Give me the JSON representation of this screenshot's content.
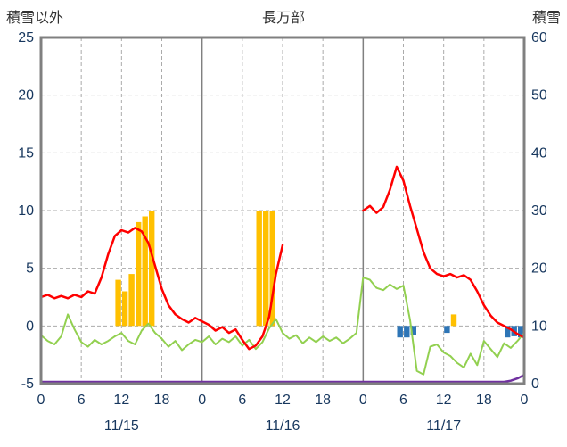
{
  "chart_data": {
    "type": "line",
    "title": "長万部",
    "left_axis": {
      "label": "積雪以外",
      "min": -5,
      "max": 25,
      "ticks": [
        25,
        20,
        15,
        10,
        5,
        0,
        -5
      ]
    },
    "right_axis": {
      "label": "積雪",
      "min": 0,
      "max": 60,
      "ticks": [
        60,
        50,
        40,
        30,
        20,
        10,
        0
      ]
    },
    "x_axis": {
      "hours_total": 72,
      "hour_ticks": [
        0,
        6,
        12,
        18,
        0,
        6,
        12,
        18,
        0,
        6,
        12,
        18,
        0
      ],
      "day_labels": [
        "11/15",
        "11/16",
        "11/17"
      ]
    },
    "frame_color": "#808080",
    "grid_color": "#ABABAB",
    "day_line_color": "#808080",
    "tick_color": "#17375E",
    "title_color": "#333333",
    "background": "#FFFFFF",
    "series": [
      {
        "name": "orange-bars",
        "type": "bar",
        "axis": "left",
        "color": "#FFC000",
        "points": [
          [
            11,
            4
          ],
          [
            12,
            3
          ],
          [
            13,
            4.5
          ],
          [
            14,
            9
          ],
          [
            15,
            9.5
          ],
          [
            16,
            10
          ],
          [
            32,
            10
          ],
          [
            33,
            10
          ],
          [
            34,
            10
          ],
          [
            61,
            1
          ]
        ]
      },
      {
        "name": "blue-bars",
        "type": "bar",
        "axis": "left",
        "color": "#2E75B6",
        "points": [
          [
            53,
            -1
          ],
          [
            54,
            -1
          ],
          [
            55,
            -0.8
          ],
          [
            60,
            -0.6
          ],
          [
            69,
            -1
          ],
          [
            70,
            -0.9
          ],
          [
            71,
            -1
          ]
        ]
      },
      {
        "name": "green-line",
        "type": "line",
        "axis": "left",
        "color": "#92D050",
        "width": 2,
        "points": [
          [
            0,
            -0.8
          ],
          [
            1,
            -1.3
          ],
          [
            2,
            -1.6
          ],
          [
            3,
            -0.9
          ],
          [
            4,
            1.0
          ],
          [
            5,
            -0.3
          ],
          [
            6,
            -1.4
          ],
          [
            7,
            -1.8
          ],
          [
            8,
            -1.2
          ],
          [
            9,
            -1.6
          ],
          [
            10,
            -1.3
          ],
          [
            11,
            -0.9
          ],
          [
            12,
            -0.6
          ],
          [
            13,
            -1.3
          ],
          [
            14,
            -1.6
          ],
          [
            15,
            -0.4
          ],
          [
            16,
            0.2
          ],
          [
            17,
            -0.6
          ],
          [
            18,
            -1.1
          ],
          [
            19,
            -1.8
          ],
          [
            20,
            -1.3
          ],
          [
            21,
            -2.1
          ],
          [
            22,
            -1.6
          ],
          [
            23,
            -1.2
          ],
          [
            24,
            -1.4
          ],
          [
            25,
            -0.9
          ],
          [
            26,
            -1.6
          ],
          [
            27,
            -1.1
          ],
          [
            28,
            -1.4
          ],
          [
            29,
            -0.9
          ],
          [
            30,
            -1.7
          ],
          [
            31,
            -1.2
          ],
          [
            32,
            -2.0
          ],
          [
            33,
            -1.4
          ],
          [
            34,
            -0.2
          ],
          [
            35,
            0.6
          ],
          [
            36,
            -0.6
          ],
          [
            37,
            -1.1
          ],
          [
            38,
            -0.8
          ],
          [
            39,
            -1.5
          ],
          [
            40,
            -1.0
          ],
          [
            41,
            -1.4
          ],
          [
            42,
            -0.9
          ],
          [
            43,
            -1.3
          ],
          [
            44,
            -1.0
          ],
          [
            45,
            -1.5
          ],
          [
            46,
            -1.1
          ],
          [
            47,
            -0.6
          ],
          [
            48,
            4.2
          ],
          [
            49,
            4.0
          ],
          [
            50,
            3.3
          ],
          [
            51,
            3.1
          ],
          [
            52,
            3.6
          ],
          [
            53,
            3.2
          ],
          [
            54,
            3.5
          ],
          [
            55,
            0.5
          ],
          [
            56,
            -3.9
          ],
          [
            57,
            -4.2
          ],
          [
            58,
            -1.8
          ],
          [
            59,
            -1.6
          ],
          [
            60,
            -2.3
          ],
          [
            61,
            -2.6
          ],
          [
            62,
            -3.2
          ],
          [
            63,
            -3.6
          ],
          [
            64,
            -2.4
          ],
          [
            65,
            -3.4
          ],
          [
            66,
            -1.3
          ],
          [
            67,
            -2.0
          ],
          [
            68,
            -2.7
          ],
          [
            69,
            -1.5
          ],
          [
            70,
            -1.9
          ],
          [
            71,
            -1.3
          ],
          [
            72,
            -0.6
          ]
        ]
      },
      {
        "name": "red-line",
        "type": "line",
        "axis": "left",
        "color": "#FF0000",
        "width": 2.5,
        "points": [
          [
            0,
            2.5
          ],
          [
            1,
            2.7
          ],
          [
            2,
            2.4
          ],
          [
            3,
            2.6
          ],
          [
            4,
            2.4
          ],
          [
            5,
            2.7
          ],
          [
            6,
            2.5
          ],
          [
            7,
            3.0
          ],
          [
            8,
            2.8
          ],
          [
            9,
            4.2
          ],
          [
            10,
            6.2
          ],
          [
            11,
            7.8
          ],
          [
            12,
            8.3
          ],
          [
            13,
            8.1
          ],
          [
            14,
            8.5
          ],
          [
            15,
            8.2
          ],
          [
            16,
            7.2
          ],
          [
            17,
            5.2
          ],
          [
            18,
            3.2
          ],
          [
            19,
            1.8
          ],
          [
            20,
            1.0
          ],
          [
            21,
            0.6
          ],
          [
            22,
            0.3
          ],
          [
            23,
            0.7
          ],
          [
            24,
            0.4
          ],
          [
            25,
            0.1
          ],
          [
            26,
            -0.4
          ],
          [
            27,
            -0.1
          ],
          [
            28,
            -0.6
          ],
          [
            29,
            -0.3
          ],
          [
            30,
            -1.2
          ],
          [
            31,
            -2.0
          ],
          [
            32,
            -1.7
          ],
          [
            33,
            -0.9
          ],
          [
            34,
            0.8
          ],
          [
            35,
            4.5
          ],
          [
            36,
            7.0
          ],
          null,
          [
            48,
            10.0
          ],
          [
            49,
            10.4
          ],
          [
            50,
            9.8
          ],
          [
            51,
            10.3
          ],
          [
            52,
            11.8
          ],
          [
            53,
            13.8
          ],
          [
            54,
            12.6
          ],
          [
            55,
            10.4
          ],
          [
            56,
            8.4
          ],
          [
            57,
            6.4
          ],
          [
            58,
            5.0
          ],
          [
            59,
            4.5
          ],
          [
            60,
            4.3
          ],
          [
            61,
            4.5
          ],
          [
            62,
            4.2
          ],
          [
            63,
            4.4
          ],
          [
            64,
            4.0
          ],
          [
            65,
            3.0
          ],
          [
            66,
            1.8
          ],
          [
            67,
            0.9
          ],
          [
            68,
            0.3
          ],
          [
            69,
            0.0
          ],
          [
            70,
            -0.3
          ],
          [
            71,
            -0.7
          ],
          [
            72,
            -1.0
          ]
        ]
      },
      {
        "name": "purple-line",
        "type": "line",
        "axis": "right",
        "color": "#7030A0",
        "width": 2.5,
        "y_offset": -2,
        "points": [
          [
            0,
            0
          ],
          [
            69,
            0
          ],
          [
            70,
            0.2
          ],
          [
            71,
            0.6
          ],
          [
            72,
            1.2
          ]
        ]
      }
    ]
  }
}
